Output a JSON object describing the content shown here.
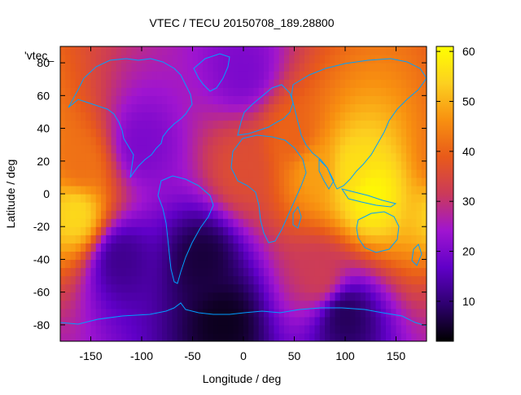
{
  "chart_data": {
    "type": "heatmap",
    "title": "VTEC / TECU 20150708_189.28800",
    "xlabel": "Longitude / deg",
    "ylabel": "Latitude / deg",
    "legend_entry": "'vtec_",
    "xlim": [
      -180,
      180
    ],
    "ylim": [
      -90,
      90
    ],
    "x_ticks": [
      -150,
      -100,
      -50,
      0,
      50,
      100,
      150
    ],
    "y_ticks": [
      -80,
      -60,
      -40,
      -20,
      0,
      20,
      40,
      60,
      80
    ],
    "colorbar": {
      "range": [
        2,
        61
      ],
      "ticks": [
        10,
        20,
        30,
        40,
        50,
        60
      ],
      "palette": [
        "#000000",
        "#2e006f",
        "#6000c8",
        "#a015d0",
        "#cb3a5a",
        "#e85a1a",
        "#f89010",
        "#fcd020",
        "#ffff00"
      ]
    },
    "grid": false,
    "coastlines": true,
    "coastline_color": "#00a0ff",
    "features": [
      {
        "lon": 110,
        "lat": 15,
        "vtec": 56
      },
      {
        "lon": 125,
        "lat": 0,
        "vtec": 60
      },
      {
        "lon": 70,
        "lat": 15,
        "vtec": 48
      },
      {
        "lon": 50,
        "lat": 35,
        "vtec": 40
      },
      {
        "lon": 0,
        "lat": 15,
        "vtec": 36
      },
      {
        "lon": -165,
        "lat": -12,
        "vtec": 55
      },
      {
        "lon": -160,
        "lat": 18,
        "vtec": 42
      },
      {
        "lon": 75,
        "lat": -50,
        "vtec": 32
      },
      {
        "lon": -100,
        "lat": 30,
        "vtec": 20
      },
      {
        "lon": -20,
        "lat": -78,
        "vtec": 4
      },
      {
        "lon": 100,
        "lat": -75,
        "vtec": 8
      },
      {
        "lon": -40,
        "lat": -40,
        "vtec": 6
      },
      {
        "lon": 0,
        "lat": 75,
        "vtec": 20
      },
      {
        "lon": -120,
        "lat": -40,
        "vtec": 12
      }
    ]
  }
}
